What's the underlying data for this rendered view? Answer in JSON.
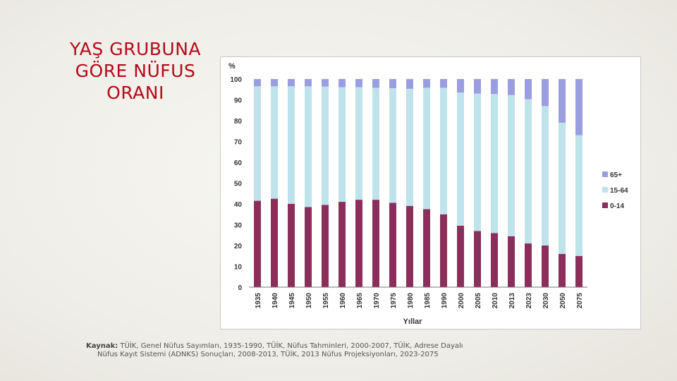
{
  "slide": {
    "title_lines": [
      "YAŞ GRUBUNA",
      "GÖRE NÜFUS",
      "ORANI"
    ]
  },
  "source": {
    "label": "Kaynak:",
    "line1": " TÜİK, Genel Nüfus Sayımları, 1935-1990, TÜİK, Nüfus Tahminleri, 2000-2007, TÜİK, Adrese Dayalı",
    "line2": "Nüfus Kayıt Sistemi (ADNKS) Sonuçları, 2008-2013, TÜİK, 2013 Nüfus Projeksiyonları, 2023-2075"
  },
  "chart_data": {
    "type": "bar",
    "stacked": true,
    "ylabel": "%",
    "xlabel": "Yıllar",
    "ylim": [
      0,
      100
    ],
    "yticks": [
      0,
      10,
      20,
      30,
      40,
      50,
      60,
      70,
      80,
      90,
      100
    ],
    "legend_position": "right",
    "categories": [
      "1935",
      "1940",
      "1945",
      "1950",
      "1955",
      "1960",
      "1965",
      "1970",
      "1975",
      "1980",
      "1985",
      "1990",
      "2000",
      "2005",
      "2010",
      "2013",
      "2023",
      "2030",
      "2050",
      "2075"
    ],
    "series": [
      {
        "name": "0-14",
        "color": "#8b2f5a",
        "values": [
          41.5,
          42.5,
          40,
          38.5,
          39.5,
          41,
          42,
          42,
          40.5,
          39,
          37.5,
          35,
          29.5,
          27,
          26,
          24.5,
          21,
          20,
          16,
          15
        ]
      },
      {
        "name": "15-64",
        "color": "#bfe3ea",
        "values": [
          55,
          54,
          56.5,
          58,
          56.9,
          55.1,
          54.1,
          53.8,
          55.1,
          56.3,
          58.3,
          60.8,
          64,
          66,
          66.8,
          67.8,
          69.3,
          67,
          63,
          58
        ]
      },
      {
        "name": "65+",
        "color": "#9a9de0",
        "values": [
          3.5,
          3.5,
          3.5,
          3.5,
          3.6,
          3.9,
          3.9,
          4.2,
          4.4,
          4.7,
          4.2,
          4.2,
          6.5,
          7,
          7.2,
          7.7,
          9.7,
          13,
          21,
          27
        ]
      }
    ]
  }
}
